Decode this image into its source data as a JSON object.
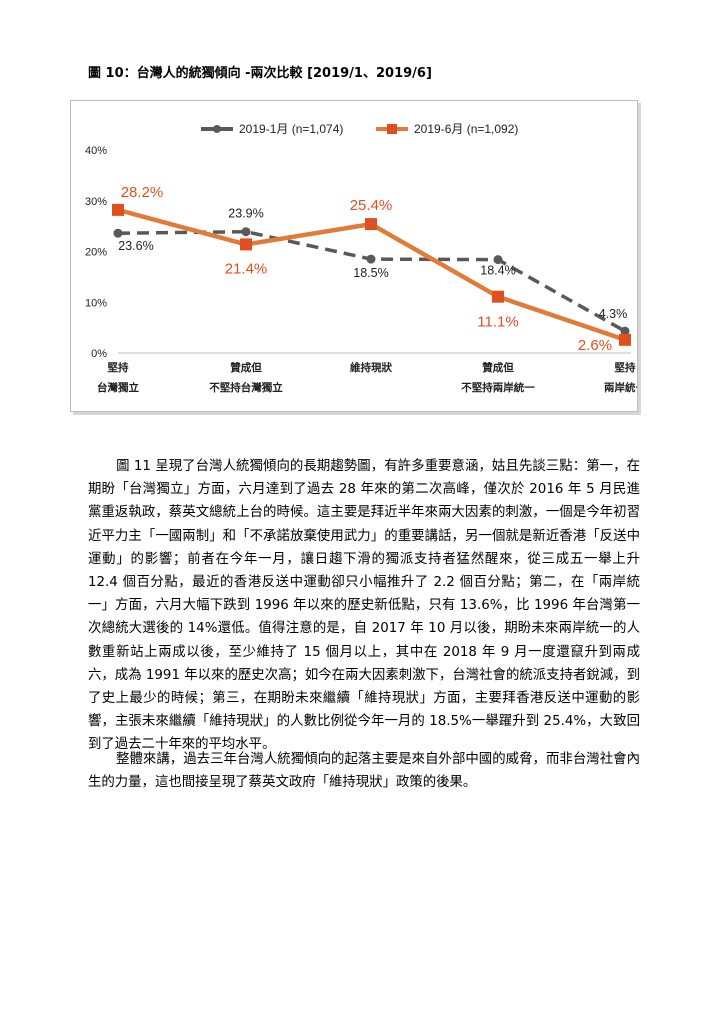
{
  "figure_title": "圖 10：台灣人的統獨傾向 -兩次比較 [2019/1、2019/6]",
  "chart_data": {
    "type": "line",
    "categories": [
      [
        "堅持",
        "台灣獨立"
      ],
      [
        "贊成但",
        "不堅持台灣獨立"
      ],
      [
        "維持現狀"
      ],
      [
        "贊成但",
        "不堅持兩岸統一"
      ],
      [
        "堅持",
        "兩岸統一"
      ]
    ],
    "series": [
      {
        "name": "2019-1月 (n=1,074)",
        "values": [
          23.6,
          23.9,
          18.5,
          18.4,
          4.3
        ],
        "labels": [
          "23.6%",
          "23.9%",
          "18.5%",
          "18.4%",
          "4.3%"
        ],
        "color": "#595959",
        "dash": true
      },
      {
        "name": "2019-6月 (n=1,092)",
        "values": [
          28.2,
          21.4,
          25.4,
          11.1,
          2.6
        ],
        "labels": [
          "28.2%",
          "21.4%",
          "25.4%",
          "11.1%",
          "2.6%"
        ],
        "color": "#e07b39",
        "dash": false
      }
    ],
    "yticks": [
      "0%",
      "10%",
      "20%",
      "30%",
      "40%"
    ],
    "ylim": [
      0,
      40
    ],
    "grid": false,
    "legend": "top",
    "label_color_series2": "#e0501e"
  },
  "paragraphs": {
    "p1": "圖 11 呈現了台灣人統獨傾向的長期趨勢圖，有許多重要意涵，姑且先談三點：第一，在期盼「台灣獨立」方面，六月達到了過去 28 年來的第二次高峰，僅次於 2016 年 5 月民進黨重返執政，蔡英文總統上台的時候。這主要是拜近半年來兩大因素的刺激，一個是今年初習近平力主「一國兩制」和「不承諾放棄使用武力」的重要講話，另一個就是新近香港「反送中運動」的影響；前者在今年一月，讓日趨下滑的獨派支持者猛然醒來，從三成五一舉上升 12.4 個百分點，最近的香港反送中運動卻只小幅推升了 2.2 個百分點；第二，在「兩岸統一」方面，六月大幅下跌到 1996 年以來的歷史新低點，只有 13.6%，比 1996 年台灣第一次總統大選後的 14%還低。值得注意的是，自 2017 年 10 月以後，期盼未來兩岸統一的人數重新站上兩成以後，至少維持了 15 個月以上，其中在 2018 年 9 月一度還竄升到兩成六，成為 1991 年以來的歷史次高；如今在兩大因素刺激下，台灣社會的統派支持者銳減，到了史上最少的時候；第三，在期盼未來繼續「維持現狀」方面，主要拜香港反送中運動的影響，主張未來繼續「維持現狀」的人數比例從今年一月的 18.5%一舉躍升到 25.4%，大致回到了過去二十年來的平均水平。",
    "p2": "整體來講，過去三年台灣人統獨傾向的起落主要是來自外部中國的威脅，而非台灣社會內生的力量，這也間接呈現了蔡英文政府「維持現狀」政策的後果。"
  }
}
